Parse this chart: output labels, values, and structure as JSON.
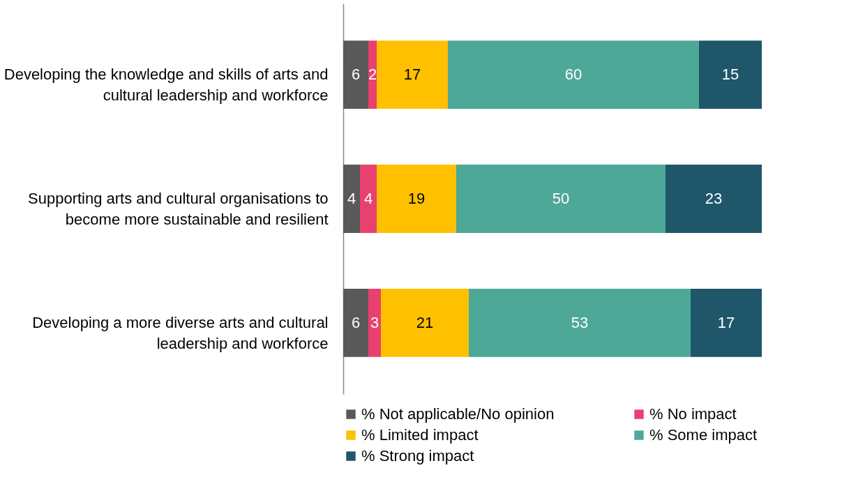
{
  "chart_data": {
    "type": "bar",
    "orientation": "horizontal",
    "stacked": true,
    "data_labels": true,
    "grid": false,
    "legend": "bottom",
    "tick_labels": "y",
    "xlim": [
      0,
      100
    ],
    "categories": [
      "Developing the knowledge and skills of arts and cultural leadership and workforce",
      "Supporting arts and cultural organisations to become more sustainable and resilient",
      "Developing a more diverse arts and cultural leadership and workforce"
    ],
    "series": [
      {
        "name": "% Not applicable/No opinion",
        "color": "#595959",
        "values": [
          6,
          4,
          6
        ]
      },
      {
        "name": "% No impact",
        "color": "#e8416f",
        "values": [
          2,
          4,
          3
        ]
      },
      {
        "name": "% Limited impact",
        "color": "#ffc000",
        "values": [
          17,
          19,
          21
        ]
      },
      {
        "name": "% Some impact",
        "color": "#4ea898",
        "values": [
          60,
          50,
          53
        ]
      },
      {
        "name": "% Strong impact",
        "color": "#1f566a",
        "values": [
          15,
          23,
          17
        ]
      }
    ]
  }
}
